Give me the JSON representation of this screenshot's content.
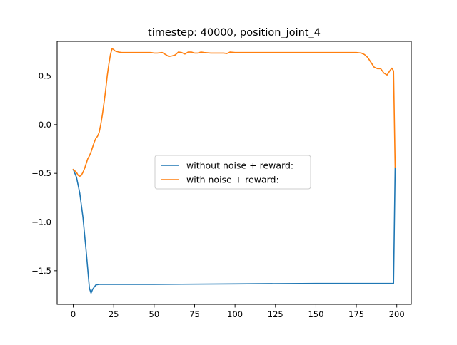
{
  "chart_data": {
    "type": "line",
    "title": "timestep: 40000, position_joint_4",
    "xlabel": "",
    "ylabel": "",
    "xlim": [
      -9.95,
      208.95
    ],
    "ylim": [
      -1.845,
      0.855
    ],
    "xticks": [
      0,
      25,
      50,
      75,
      100,
      125,
      150,
      175,
      200
    ],
    "yticks": [
      -1.5,
      -1.0,
      -0.5,
      0.0,
      0.5
    ],
    "xtick_labels": [
      "0",
      "25",
      "50",
      "75",
      "100",
      "125",
      "150",
      "175",
      "200"
    ],
    "ytick_labels": [
      "−1.5",
      "−1.0",
      "−0.5",
      "0.0",
      "0.5"
    ],
    "grid": false,
    "legend": "center",
    "series": [
      {
        "name": "without noise + reward:",
        "color": "#1f77b4",
        "x": [
          0,
          2,
          4,
          6,
          8,
          10,
          11,
          12,
          14,
          16,
          20,
          30,
          50,
          100,
          150,
          198,
          199
        ],
        "y": [
          -0.46,
          -0.54,
          -0.7,
          -0.95,
          -1.3,
          -1.68,
          -1.73,
          -1.69,
          -1.645,
          -1.64,
          -1.64,
          -1.64,
          -1.64,
          -1.635,
          -1.63,
          -1.63,
          -0.44
        ]
      },
      {
        "name": "with noise + reward:",
        "color": "#ff7f0e",
        "x": [
          0,
          2,
          3,
          4,
          5,
          6,
          7,
          8,
          9,
          10,
          11,
          12,
          13,
          14,
          15,
          16,
          17,
          18,
          19,
          20,
          21,
          22,
          23,
          24,
          25,
          26,
          28,
          30,
          35,
          40,
          45,
          48,
          50,
          52,
          55,
          57,
          59,
          61,
          63,
          65,
          67,
          69,
          71,
          73,
          75,
          77,
          79,
          81,
          85,
          90,
          93,
          95,
          97,
          100,
          110,
          130,
          150,
          170,
          175,
          178,
          180,
          182,
          184,
          186,
          188,
          190,
          192,
          194,
          196,
          197,
          198,
          199
        ],
        "y": [
          -0.46,
          -0.49,
          -0.52,
          -0.53,
          -0.52,
          -0.49,
          -0.45,
          -0.4,
          -0.35,
          -0.32,
          -0.28,
          -0.23,
          -0.18,
          -0.14,
          -0.12,
          -0.08,
          0.0,
          0.1,
          0.22,
          0.35,
          0.5,
          0.62,
          0.72,
          0.78,
          0.77,
          0.755,
          0.745,
          0.74,
          0.74,
          0.74,
          0.74,
          0.74,
          0.735,
          0.735,
          0.74,
          0.72,
          0.7,
          0.705,
          0.715,
          0.745,
          0.74,
          0.725,
          0.745,
          0.745,
          0.735,
          0.735,
          0.745,
          0.74,
          0.735,
          0.735,
          0.735,
          0.73,
          0.745,
          0.74,
          0.74,
          0.74,
          0.74,
          0.74,
          0.74,
          0.735,
          0.72,
          0.69,
          0.64,
          0.59,
          0.575,
          0.575,
          0.53,
          0.51,
          0.56,
          0.58,
          0.55,
          -0.44
        ]
      }
    ]
  }
}
